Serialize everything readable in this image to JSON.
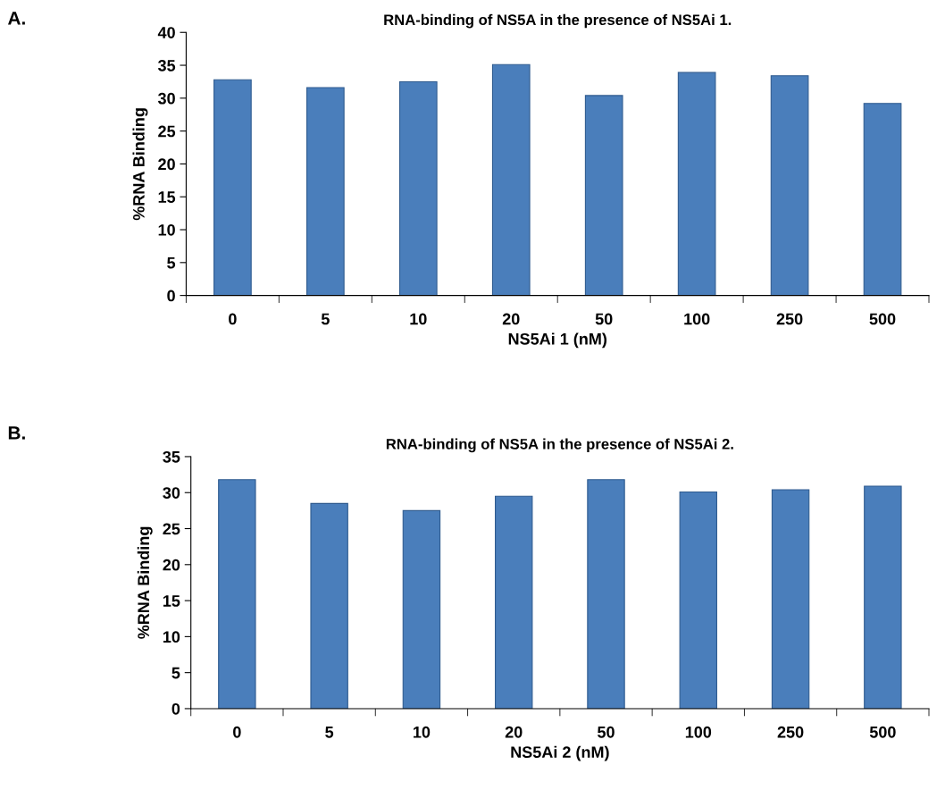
{
  "chart_data": [
    {
      "type": "bar",
      "title": "RNA-binding of NS5A in the presence of NS5Ai 1.",
      "xlabel": "NS5Ai 1 (nM)",
      "ylabel": "%RNA Binding",
      "annotations": [
        "A."
      ],
      "categories": [
        "0",
        "5",
        "10",
        "20",
        "50",
        "100",
        "250",
        "500"
      ],
      "values": [
        32.8,
        31.6,
        32.5,
        35.1,
        30.4,
        33.9,
        33.4,
        29.2
      ],
      "color": "#4a7ebb",
      "ylim": [
        0,
        40
      ],
      "yticks": [
        0,
        5,
        10,
        15,
        20,
        25,
        30,
        35,
        40
      ],
      "grid": false,
      "legend": false
    },
    {
      "type": "bar",
      "title": "RNA-binding of NS5A in the presence of NS5Ai 2.",
      "xlabel": "NS5Ai 2 (nM)",
      "ylabel": "%RNA Binding",
      "annotations": [
        "B."
      ],
      "categories": [
        "0",
        "5",
        "10",
        "20",
        "50",
        "100",
        "250",
        "500"
      ],
      "values": [
        31.8,
        28.5,
        27.5,
        29.5,
        31.8,
        30.1,
        30.4,
        30.9
      ],
      "color": "#4a7ebb",
      "ylim": [
        0,
        35
      ],
      "yticks": [
        0,
        5,
        10,
        15,
        20,
        25,
        30,
        35
      ],
      "grid": false,
      "legend": false
    }
  ]
}
